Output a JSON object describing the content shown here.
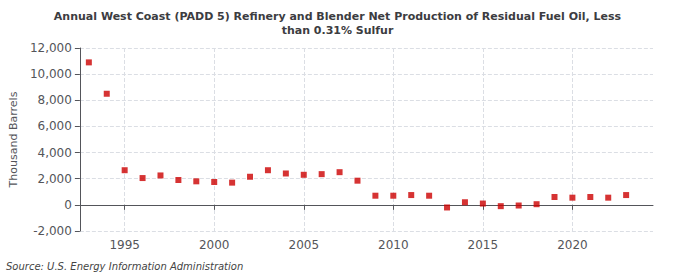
{
  "chart_data": {
    "type": "scatter",
    "title": "Annual West Coast (PADD 5) Refinery and Blender Net Production of Residual Fuel Oil, Less\nthan 0.31% Sulfur",
    "ylabel": "Thousand Barrels",
    "annotations": [
      "Source: U.S. Energy Information Administration"
    ],
    "x": [
      1993,
      1994,
      1995,
      1996,
      1997,
      1998,
      1999,
      2000,
      2001,
      2002,
      2003,
      2004,
      2005,
      2006,
      2007,
      2008,
      2009,
      2010,
      2011,
      2012,
      2013,
      2014,
      2015,
      2016,
      2017,
      2018,
      2019,
      2020,
      2021,
      2022,
      2023
    ],
    "values": [
      10900,
      8500,
      2650,
      2050,
      2250,
      1900,
      1800,
      1750,
      1700,
      2150,
      2650,
      2400,
      2300,
      2350,
      2500,
      1850,
      700,
      700,
      750,
      700,
      -200,
      200,
      100,
      -100,
      -50,
      50,
      600,
      550,
      600,
      550,
      750
    ],
    "color": "#cc0000",
    "marker": "square",
    "xlim": [
      1992.5,
      2024.5
    ],
    "xticks": [
      1995,
      2000,
      2005,
      2010,
      2015,
      2020
    ],
    "ylim": [
      -2000,
      12000
    ],
    "yticks": [
      {
        "value": -2000,
        "label": "-2,000"
      },
      0,
      {
        "value": 2000,
        "label": "2,000"
      },
      {
        "value": 4000,
        "label": "4,000"
      },
      {
        "value": 6000,
        "label": "6,000"
      },
      {
        "value": 8000,
        "label": "8,000"
      },
      {
        "value": 10000,
        "label": "10,000"
      },
      {
        "value": 12000,
        "label": "12,000"
      }
    ],
    "grid": true
  }
}
